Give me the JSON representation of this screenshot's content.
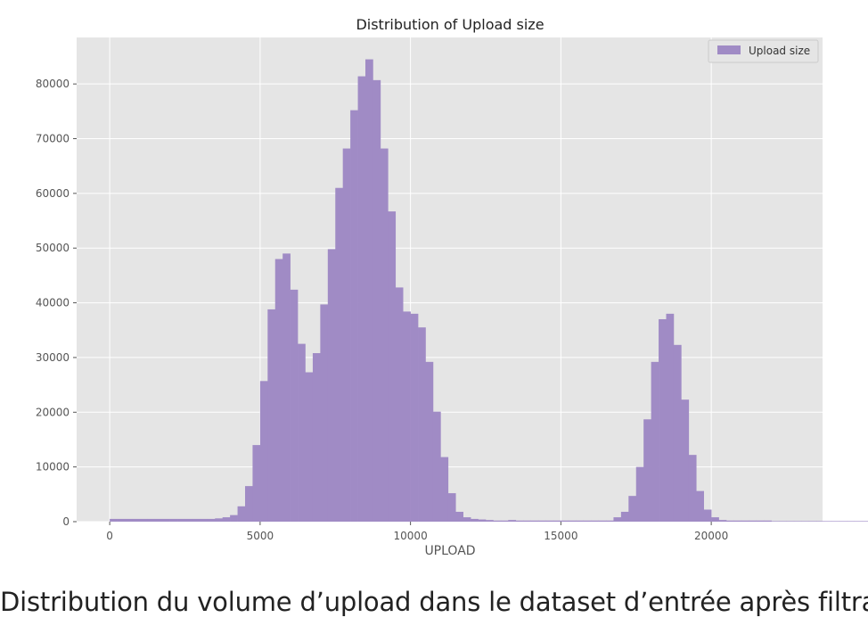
{
  "caption": "Distribution du volume d’upload dans le dataset d’entrée après filtrage",
  "colors": {
    "background": "#ffffff",
    "plot_background": "#e5e5e5",
    "grid": "#ffffff",
    "bar": "#a08bc5"
  },
  "chart_data": {
    "type": "bar",
    "title": "Distribution of Upload size",
    "xlabel": "UPLOAD",
    "ylabel": "",
    "xlim": [
      -1100,
      23700
    ],
    "ylim": [
      0,
      88500
    ],
    "xticks": [
      0,
      5000,
      10000,
      15000,
      20000
    ],
    "yticks": [
      0,
      10000,
      20000,
      30000,
      40000,
      50000,
      60000,
      70000,
      80000
    ],
    "grid": true,
    "legend": {
      "position": "top-right",
      "entries": [
        "Upload size"
      ]
    },
    "series": [
      {
        "name": "Upload size",
        "bin_width": 250,
        "x_start": 0,
        "values": [
          500,
          500,
          500,
          500,
          500,
          500,
          500,
          500,
          500,
          500,
          500,
          500,
          500,
          500,
          600,
          800,
          1200,
          2800,
          6500,
          14000,
          25700,
          38800,
          48000,
          49000,
          42400,
          32500,
          27300,
          30800,
          39700,
          49800,
          61000,
          68200,
          75200,
          81400,
          84500,
          80700,
          68200,
          56700,
          42800,
          38400,
          38000,
          35500,
          29200,
          20100,
          11800,
          5200,
          1800,
          800,
          500,
          400,
          300,
          200,
          200,
          300,
          200,
          200,
          200,
          200,
          200,
          200,
          200,
          200,
          200,
          200,
          200,
          200,
          200,
          800,
          1800,
          4700,
          10000,
          18700,
          29200,
          37000,
          38000,
          32300,
          22300,
          12200,
          5600,
          2200,
          800,
          300,
          200,
          200,
          200,
          200,
          200,
          200,
          100,
          100,
          100,
          100,
          100,
          100,
          100,
          100,
          100,
          100,
          100,
          100,
          100,
          100,
          100,
          100,
          100,
          100,
          100,
          100,
          100,
          100,
          100,
          100,
          100,
          100,
          100,
          100,
          100,
          100,
          100,
          100,
          100,
          100,
          100,
          100,
          100,
          100,
          100,
          100,
          100
        ]
      }
    ]
  }
}
